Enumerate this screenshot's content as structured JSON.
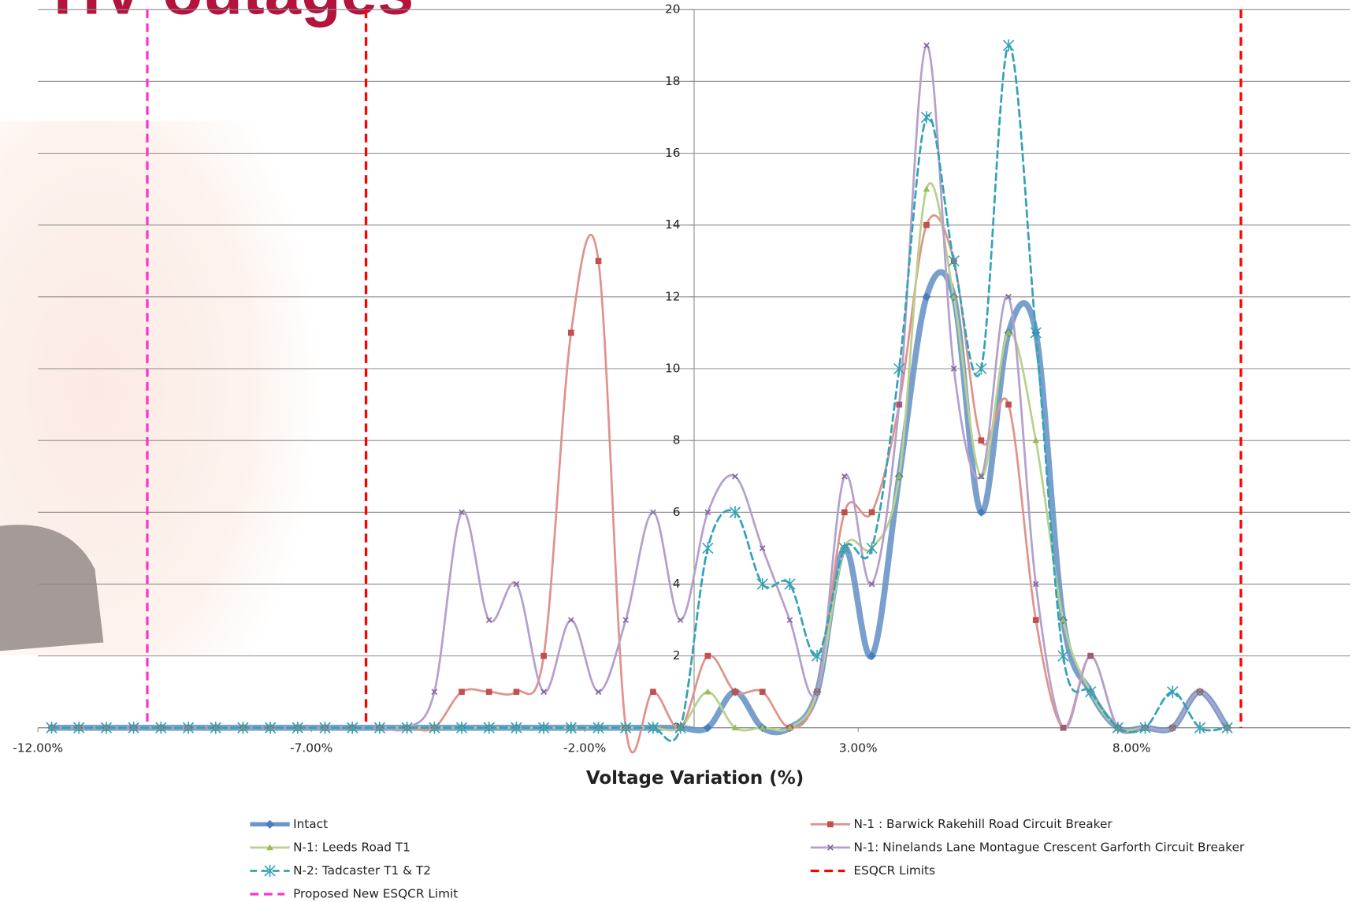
{
  "chart_data": {
    "type": "line",
    "title": "HV outages",
    "x_label": "Voltage Variation (%)",
    "x": [
      -11.75,
      -11.25,
      -10.75,
      -10.25,
      -9.75,
      -9.25,
      -8.75,
      -8.25,
      -7.75,
      -7.25,
      -6.75,
      -6.25,
      -5.75,
      -5.25,
      -4.75,
      -4.25,
      -3.75,
      -3.25,
      -2.75,
      -2.25,
      -1.75,
      -1.25,
      -0.75,
      -0.25,
      0.25,
      0.75,
      1.25,
      1.75,
      2.25,
      2.75,
      3.25,
      3.75,
      4.25,
      4.75,
      5.25,
      5.75,
      6.25,
      6.75,
      7.25,
      7.75,
      8.25,
      8.75,
      9.25,
      9.75
    ],
    "series": [
      {
        "name": "Intact",
        "color": "#6a96c8",
        "marker": "diamond",
        "width": 7,
        "dashed": false,
        "values": [
          0,
          0,
          0,
          0,
          0,
          0,
          0,
          0,
          0,
          0,
          0,
          0,
          0,
          0,
          0,
          0,
          0,
          0,
          0,
          0,
          0,
          0,
          0,
          0,
          0,
          1,
          0,
          0,
          1,
          5,
          2,
          7,
          12,
          12,
          6,
          11,
          11,
          3,
          1,
          0,
          0,
          0,
          1,
          0
        ]
      },
      {
        "name": "N-1 : Barwick Rakehill Road Circuit Breaker",
        "color": "#e0928c",
        "marker": "square",
        "width": 2.5,
        "dashed": false,
        "values": [
          0,
          0,
          0,
          0,
          0,
          0,
          0,
          0,
          0,
          0,
          0,
          0,
          0,
          0,
          0,
          1,
          1,
          1,
          2,
          11,
          13,
          0,
          1,
          0,
          2,
          1,
          1,
          0,
          1,
          6,
          6,
          9,
          14,
          13,
          8,
          9,
          3,
          0,
          2,
          0,
          0,
          0,
          1,
          0
        ]
      },
      {
        "name": "N-1: Leeds Road T1",
        "color": "#b8d18e",
        "marker": "triangle",
        "width": 2.5,
        "dashed": false,
        "values": [
          0,
          0,
          0,
          0,
          0,
          0,
          0,
          0,
          0,
          0,
          0,
          0,
          0,
          0,
          0,
          0,
          0,
          0,
          0,
          0,
          0,
          0,
          0,
          0,
          1,
          0,
          0,
          0,
          1,
          5,
          5,
          7,
          15,
          12,
          7,
          11,
          8,
          3,
          1,
          0,
          0,
          0,
          1,
          0
        ]
      },
      {
        "name": "N-1: Ninelands Lane Montague Crescent Garforth Circuit Breaker",
        "color": "#b4a0cc",
        "marker": "x",
        "width": 2.5,
        "dashed": false,
        "values": [
          0,
          0,
          0,
          0,
          0,
          0,
          0,
          0,
          0,
          0,
          0,
          0,
          0,
          0,
          1,
          6,
          3,
          4,
          1,
          3,
          1,
          3,
          6,
          3,
          6,
          7,
          5,
          3,
          1,
          7,
          4,
          9,
          19,
          10,
          7,
          12,
          4,
          0,
          2,
          0,
          0,
          0,
          1,
          0
        ]
      },
      {
        "name": "N-2: Tadcaster T1 & T2",
        "color": "#35a2b6",
        "marker": "star",
        "width": 2.5,
        "dashed": true,
        "values": [
          0,
          0,
          0,
          0,
          0,
          0,
          0,
          0,
          0,
          0,
          0,
          0,
          0,
          0,
          0,
          0,
          0,
          0,
          0,
          0,
          0,
          0,
          0,
          0,
          5,
          6,
          4,
          4,
          2,
          5,
          5,
          10,
          17,
          13,
          10,
          19,
          11,
          2,
          1,
          0,
          0,
          1,
          0,
          0
        ]
      }
    ],
    "reference_lines": [
      {
        "name": "ESQCR Limits",
        "color": "#ff0000",
        "x": [
          -6,
          10
        ]
      },
      {
        "name": "Proposed New ESQCR Limit",
        "color": "#ff33cc",
        "x": [
          -10
        ]
      }
    ],
    "xlim": [
      -12,
      12
    ],
    "xticks": [
      {
        "value": -12,
        "label": "-12.00%"
      },
      {
        "value": -7,
        "label": "-7.00%"
      },
      {
        "value": -2,
        "label": "-2.00%"
      },
      {
        "value": 3,
        "label": "3.00%"
      },
      {
        "value": 8,
        "label": "8.00%"
      }
    ],
    "ylim": [
      0,
      20
    ],
    "yticks": [
      0,
      2,
      4,
      6,
      8,
      10,
      12,
      14,
      16,
      18,
      20
    ],
    "grid": true,
    "smooth": true
  }
}
